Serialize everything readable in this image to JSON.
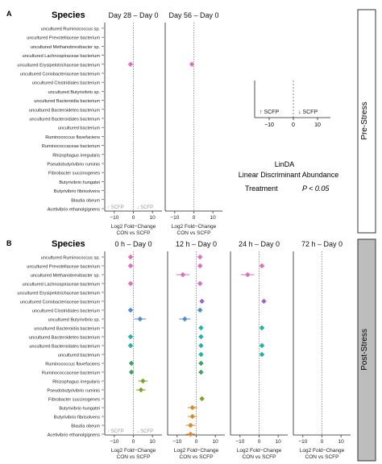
{
  "panel_a": {
    "letter": "A",
    "species_header": "Species",
    "side_label": "Pre-Stress",
    "facets": [
      "Day 28 – Day 0",
      "Day 56 – Day 0"
    ],
    "xlabel_line1": "Log2 Fold−Change",
    "xlabel_line2": "CON vs SCFP",
    "arrow_left": "↑ SCFP",
    "arrow_right": "↓ SCFP",
    "ticks": [
      "−10",
      "0",
      "10"
    ]
  },
  "legend": {
    "arrow_left": "↑ SCFP",
    "arrow_right": "↓ SCFP",
    "ticks": [
      "−10",
      "0",
      "10"
    ],
    "method": "LinDA",
    "method_full": "Linear Discriminant Abundance",
    "key_label": "Treatment",
    "p_label": "P < 0.05"
  },
  "panel_b": {
    "letter": "B",
    "species_header": "Species",
    "side_label": "Post-Stress",
    "facets": [
      "0 h – Day 0",
      "12 h – Day 0",
      "24 h – Day 0",
      "72 h – Day 0"
    ],
    "xlabel_line1": "Log2 Fold−Change",
    "xlabel_line2": "CON vs SCFP",
    "arrow_left": "↑ SCFP",
    "arrow_right": "↓ SCFP",
    "ticks": [
      "−10",
      "0",
      "10"
    ]
  },
  "colors": {
    "pink": "#e06fb8",
    "violet": "#9a64c8",
    "blue": "#4f8ad8",
    "teal": "#1fb3a9",
    "green": "#3aa35f",
    "olive": "#7ea326",
    "orange": "#dc8a28",
    "side_bar_a": "#ffffff",
    "side_bar_b": "#bdbdbd"
  },
  "chart_data": [
    {
      "type": "scatter",
      "name": "A",
      "categories": [
        "uncultured Ruminococcus sp.",
        "uncultured Prevotellaceae bacterium",
        "uncultured Methanobrevibacter sp.",
        "uncultured Lachnospiraceae bacterium",
        "uncultured Erysipelotrichaceae bacterium",
        "uncultured Coriobacteriaceae bacterium",
        "uncultured Clostridiales bacterium",
        "uncultured Butyrivibrio sp.",
        "uncultured Bacteroidia bacterium",
        "uncultured Bacteroidetes bacterium",
        "uncultured Bacteroidales bacterium",
        "uncultured bacterium",
        "Ruminococcus flavefaciens",
        "Ruminococcaceae bacterium",
        "Rhizophagus irregularis",
        "Pseudobutyrivibrio ruminis",
        "Fibrobacter succinogenes",
        "Butyrivibrio hungatei",
        "Butyrivibrio fibrisolvens",
        "Blautia obeum",
        "Acetivibrio ethanolgignens"
      ],
      "xlim": [
        -15,
        15
      ],
      "points": [
        {
          "facet": "Day 28 – Day 0",
          "row": 4,
          "x": -1.5,
          "lo": -2.2,
          "hi": -0.8,
          "color": "pink"
        },
        {
          "facet": "Day 56 – Day 0",
          "row": 4,
          "x": -1.0,
          "lo": -1.7,
          "hi": -0.3,
          "color": "pink"
        }
      ]
    },
    {
      "type": "scatter",
      "name": "B",
      "categories": [
        "uncultured Ruminococcus sp.",
        "uncultured Prevotellaceae bacterium",
        "uncultured Methanobrevibacter sp.",
        "uncultured Lachnospiraceae bacterium",
        "uncultured Erysipelotrichaceae bacterium",
        "uncultured Coriobacteriaceae bacterium",
        "uncultured Clostridiales bacterium",
        "uncultured Butyrivibrio sp.",
        "uncultured Bacteroidia bacterium",
        "uncultured Bacteroidetes bacterium",
        "uncultured Bacteroidales bacterium",
        "uncultured bacterium",
        "Ruminococcus flavefaciens",
        "Ruminococcaceae bacterium",
        "Rhizophagus irregularis",
        "Pseudobutyrivibrio ruminis",
        "Fibrobacter succinogenes",
        "Butyrivibrio hungatei",
        "Butyrivibrio fibrisolvens",
        "Blautia obeum",
        "Acetivibrio ethanolgignens"
      ],
      "xlim": [
        -15,
        15
      ],
      "points": [
        {
          "facet": "0 h – Day 0",
          "row": 0,
          "x": -1.5,
          "lo": -2.0,
          "hi": -1.0,
          "color": "pink"
        },
        {
          "facet": "0 h – Day 0",
          "row": 1,
          "x": -1.5,
          "lo": -2.0,
          "hi": -1.0,
          "color": "pink"
        },
        {
          "facet": "0 h – Day 0",
          "row": 3,
          "x": -1.5,
          "lo": -2.0,
          "hi": -1.0,
          "color": "pink"
        },
        {
          "facet": "0 h – Day 0",
          "row": 6,
          "x": -1.5,
          "lo": -2.5,
          "hi": -0.5,
          "color": "blue"
        },
        {
          "facet": "0 h – Day 0",
          "row": 7,
          "x": 3.5,
          "lo": 0.5,
          "hi": 6.5,
          "color": "blue"
        },
        {
          "facet": "0 h – Day 0",
          "row": 9,
          "x": -1.5,
          "lo": -2.5,
          "hi": -0.5,
          "color": "teal"
        },
        {
          "facet": "0 h – Day 0",
          "row": 10,
          "x": -1.5,
          "lo": -2.5,
          "hi": -0.5,
          "color": "teal"
        },
        {
          "facet": "0 h – Day 0",
          "row": 12,
          "x": -1.0,
          "lo": -2.0,
          "hi": 0.0,
          "color": "green"
        },
        {
          "facet": "0 h – Day 0",
          "row": 13,
          "x": -1.0,
          "lo": -2.0,
          "hi": 0.0,
          "color": "green"
        },
        {
          "facet": "0 h – Day 0",
          "row": 14,
          "x": 5.0,
          "lo": 2.5,
          "hi": 7.5,
          "color": "olive"
        },
        {
          "facet": "0 h – Day 0",
          "row": 15,
          "x": 4.0,
          "lo": 1.5,
          "hi": 6.5,
          "color": "olive"
        },
        {
          "facet": "12 h – Day 0",
          "row": 0,
          "x": 2.0,
          "lo": 1.3,
          "hi": 2.7,
          "color": "pink"
        },
        {
          "facet": "12 h – Day 0",
          "row": 1,
          "x": 2.0,
          "lo": 1.3,
          "hi": 2.7,
          "color": "pink"
        },
        {
          "facet": "12 h – Day 0",
          "row": 2,
          "x": -7.0,
          "lo": -10.5,
          "hi": -3.5,
          "color": "pink"
        },
        {
          "facet": "12 h – Day 0",
          "row": 3,
          "x": 2.0,
          "lo": 1.3,
          "hi": 2.7,
          "color": "pink"
        },
        {
          "facet": "12 h – Day 0",
          "row": 5,
          "x": 3.0,
          "lo": 2.2,
          "hi": 3.8,
          "color": "violet"
        },
        {
          "facet": "12 h – Day 0",
          "row": 6,
          "x": 2.0,
          "lo": 1.3,
          "hi": 2.7,
          "color": "blue"
        },
        {
          "facet": "12 h – Day 0",
          "row": 7,
          "x": -6.0,
          "lo": -9.0,
          "hi": -3.0,
          "color": "blue"
        },
        {
          "facet": "12 h – Day 0",
          "row": 8,
          "x": 2.5,
          "lo": 1.8,
          "hi": 3.2,
          "color": "teal"
        },
        {
          "facet": "12 h – Day 0",
          "row": 9,
          "x": 2.5,
          "lo": 1.8,
          "hi": 3.2,
          "color": "teal"
        },
        {
          "facet": "12 h – Day 0",
          "row": 10,
          "x": 2.5,
          "lo": 1.8,
          "hi": 3.2,
          "color": "teal"
        },
        {
          "facet": "12 h – Day 0",
          "row": 11,
          "x": 2.5,
          "lo": 1.8,
          "hi": 3.2,
          "color": "teal"
        },
        {
          "facet": "12 h – Day 0",
          "row": 12,
          "x": 2.5,
          "lo": 1.8,
          "hi": 3.2,
          "color": "green"
        },
        {
          "facet": "12 h – Day 0",
          "row": 13,
          "x": 2.5,
          "lo": 1.8,
          "hi": 3.2,
          "color": "green"
        },
        {
          "facet": "12 h – Day 0",
          "row": 16,
          "x": 3.0,
          "lo": 2.2,
          "hi": 3.8,
          "color": "olive"
        },
        {
          "facet": "12 h – Day 0",
          "row": 17,
          "x": -2.0,
          "lo": -4.5,
          "hi": 0.5,
          "color": "orange"
        },
        {
          "facet": "12 h – Day 0",
          "row": 18,
          "x": -2.0,
          "lo": -4.5,
          "hi": 0.5,
          "color": "orange"
        },
        {
          "facet": "12 h – Day 0",
          "row": 19,
          "x": -3.0,
          "lo": -5.5,
          "hi": -0.5,
          "color": "orange"
        },
        {
          "facet": "12 h – Day 0",
          "row": 20,
          "x": -3.0,
          "lo": -5.5,
          "hi": -0.5,
          "color": "orange"
        },
        {
          "facet": "24 h – Day 0",
          "row": 1,
          "x": 1.5,
          "lo": 0.8,
          "hi": 2.2,
          "color": "pink"
        },
        {
          "facet": "24 h – Day 0",
          "row": 2,
          "x": -6.0,
          "lo": -9.5,
          "hi": -2.5,
          "color": "pink"
        },
        {
          "facet": "24 h – Day 0",
          "row": 5,
          "x": 2.5,
          "lo": 1.7,
          "hi": 3.3,
          "color": "violet"
        },
        {
          "facet": "24 h – Day 0",
          "row": 8,
          "x": 1.5,
          "lo": 0.8,
          "hi": 2.2,
          "color": "teal"
        },
        {
          "facet": "24 h – Day 0",
          "row": 10,
          "x": 1.5,
          "lo": 0.8,
          "hi": 2.2,
          "color": "teal"
        },
        {
          "facet": "24 h – Day 0",
          "row": 11,
          "x": 1.5,
          "lo": 0.8,
          "hi": 2.2,
          "color": "teal"
        }
      ]
    }
  ]
}
